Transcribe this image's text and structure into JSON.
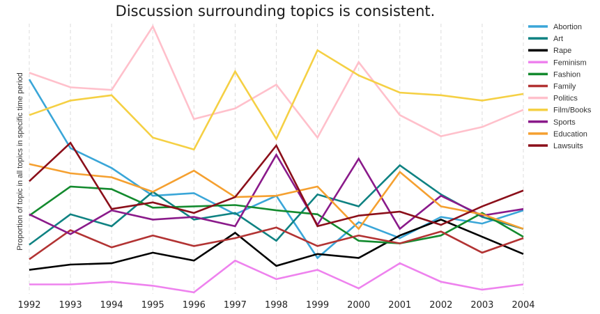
{
  "chart_data": {
    "type": "line",
    "title": "Discussion surrounding topics is consistent.",
    "ylabel": "Proportion of topic in all topics in specific time period",
    "xlabel": "",
    "ylim": [
      0,
      100
    ],
    "grid": "vertical dashed",
    "legend_position": "right",
    "x": [
      "1992",
      "1993",
      "1994",
      "1995",
      "1996",
      "1997",
      "1998",
      "1999",
      "2000",
      "2001",
      "2002",
      "2003",
      "2004"
    ],
    "series": [
      {
        "name": "Abortion",
        "color": "#3aa6d8",
        "values": [
          80,
          54,
          46.5,
          36,
          37,
          29,
          36,
          12.5,
          26,
          20,
          28,
          25.5,
          30.5
        ]
      },
      {
        "name": "Art",
        "color": "#0f8282",
        "values": [
          17.5,
          29,
          24.5,
          37.5,
          27,
          29.5,
          19,
          36.5,
          32,
          47.5,
          36.5,
          28,
          23.5
        ]
      },
      {
        "name": "Rape",
        "color": "#000000",
        "values": [
          8,
          10,
          10.5,
          14.5,
          11.5,
          22,
          9.5,
          14,
          12.5,
          21,
          27,
          20.5,
          14
        ]
      },
      {
        "name": "Feminism",
        "color": "#ee82ee",
        "values": [
          2.5,
          2.5,
          3.5,
          2,
          -0.5,
          11.5,
          4.5,
          8,
          1,
          10.5,
          3.5,
          0.5,
          2.5
        ]
      },
      {
        "name": "Fashion",
        "color": "#138a2e",
        "values": [
          28.5,
          39.5,
          38.5,
          31.5,
          32,
          32.5,
          30.5,
          29,
          19,
          18,
          21,
          29.5,
          20.5
        ]
      },
      {
        "name": "Family",
        "color": "#b23333",
        "values": [
          12,
          23,
          16.5,
          21,
          17,
          20,
          24,
          17,
          21,
          18,
          22.5,
          14.5,
          20
        ]
      },
      {
        "name": "Politics",
        "color": "#ffc0cb",
        "values": [
          82.5,
          77,
          76,
          100,
          65,
          69,
          78,
          58,
          86.5,
          66.5,
          58.5,
          62,
          68.5
        ]
      },
      {
        "name": "Film/Books",
        "color": "#f5d044",
        "values": [
          66.5,
          72,
          74,
          58,
          53.5,
          83,
          57.5,
          91,
          81.5,
          75,
          74,
          72,
          74.5
        ]
      },
      {
        "name": "Sports",
        "color": "#8a1a8a",
        "values": [
          29,
          21.5,
          30.5,
          27,
          28,
          24.5,
          51.5,
          25,
          50,
          23.5,
          36,
          28.5,
          31
        ]
      },
      {
        "name": "Education",
        "color": "#f5a030",
        "values": [
          48,
          44.5,
          43,
          37.5,
          45.5,
          35.5,
          36,
          39.5,
          23.5,
          45,
          32,
          29,
          23.5
        ]
      },
      {
        "name": "Lawsuits",
        "color": "#8b0f1a",
        "values": [
          41.5,
          56,
          31,
          33.5,
          29.5,
          35.5,
          55,
          24.5,
          28.5,
          30,
          25,
          32,
          38
        ]
      }
    ]
  }
}
